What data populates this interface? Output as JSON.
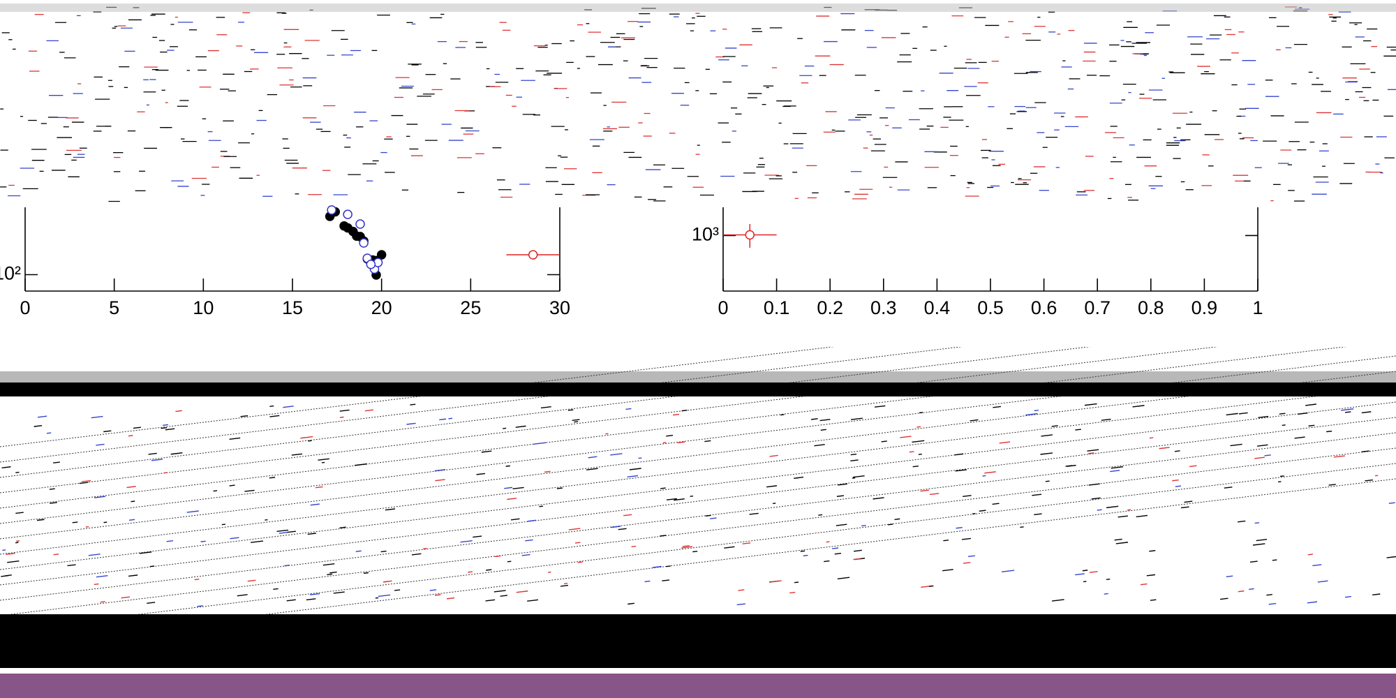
{
  "chart_data": [
    {
      "type": "scatter",
      "log_y": true,
      "xlim": [
        0,
        30
      ],
      "xticks": [
        0,
        5,
        10,
        15,
        20,
        25,
        30
      ],
      "ylim": [
        80,
        250
      ],
      "yticks": [
        {
          "value": 100,
          "label": "10²"
        }
      ],
      "series": [
        {
          "color": "#000000",
          "marker": "filled",
          "x": [
            17.1,
            17.4,
            17.9,
            18.1,
            18.4,
            18.6,
            18.8,
            19.0,
            19.2,
            19.5,
            19.7,
            20.0,
            19.7
          ],
          "values": [
            221,
            235,
            194,
            189,
            180,
            169,
            168,
            158,
            124,
            122,
            121,
            131,
            99.5
          ]
        },
        {
          "color": "#3333cc",
          "marker": "open",
          "x": [
            17.2,
            18.1,
            18.8,
            19.0,
            19.2,
            19.6,
            19.8,
            19.4
          ],
          "values": [
            241,
            227,
            199,
            154,
            125,
            108,
            118,
            115
          ]
        },
        {
          "color": "#dd2222",
          "marker": "open",
          "x": [
            28.5
          ],
          "values": [
            131
          ],
          "xerr": [
            1.5
          ],
          "yerr": [
            8
          ]
        }
      ]
    },
    {
      "type": "scatter",
      "log_y": true,
      "xlim": [
        0,
        1
      ],
      "xticks": [
        0,
        0.1,
        0.2,
        0.3,
        0.4,
        0.5,
        0.6,
        0.7,
        0.8,
        0.9,
        1
      ],
      "ylim": [
        450,
        1500
      ],
      "yticks": [
        {
          "value": 1000,
          "label": "10³"
        }
      ],
      "series": [
        {
          "color": "#dd2222",
          "marker": "open",
          "x": [
            0.05
          ],
          "values": [
            1009
          ],
          "xerr": [
            0.05
          ],
          "yerr": [
            170
          ]
        }
      ]
    }
  ]
}
